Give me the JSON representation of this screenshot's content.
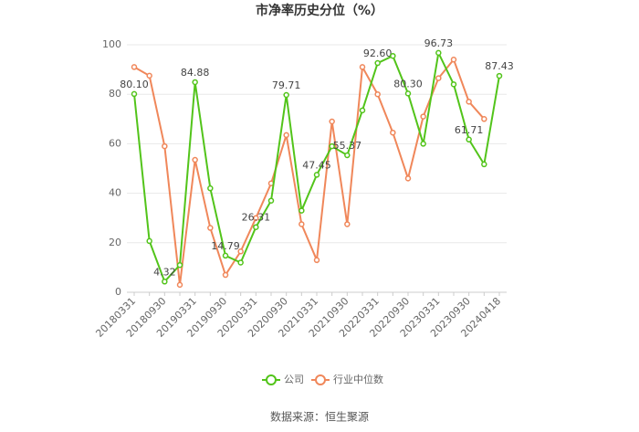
{
  "chart_data": {
    "type": "line",
    "title": "市净率历史分位（%）",
    "categories": [
      "20180331",
      null,
      "20180930",
      null,
      "20190331",
      null,
      "20190930",
      null,
      "20200331",
      null,
      "20200930",
      null,
      "20210331",
      null,
      "20210930",
      null,
      "20220331",
      null,
      "20220930",
      null,
      "20230331",
      null,
      "20230930",
      null,
      "20240418"
    ],
    "series": [
      {
        "name": "公司",
        "color": "#52c41a",
        "values": [
          80.1,
          20.7,
          4.32,
          11,
          84.88,
          42,
          14.79,
          12,
          26.31,
          37,
          79.71,
          33,
          47.45,
          59,
          55.37,
          73.5,
          92.6,
          95.5,
          80.3,
          60,
          96.73,
          84,
          61.71,
          51.7,
          87.43
        ],
        "value_labels": [
          "80.10",
          null,
          "4.32",
          null,
          "84.88",
          null,
          "14.79",
          null,
          "26.31",
          null,
          "79.71",
          null,
          "47.45",
          null,
          "55.37",
          null,
          "92.60",
          null,
          "80.30",
          null,
          "96.73",
          null,
          "61.71",
          null,
          "87.43"
        ]
      },
      {
        "name": "行业中位数",
        "color": "#f0875a",
        "values": [
          91,
          87.5,
          59,
          3,
          53.5,
          26,
          7,
          16.5,
          30,
          44,
          63.5,
          27.5,
          13,
          69,
          27.5,
          91,
          80,
          64.5,
          46,
          71,
          86.5,
          94,
          77,
          70,
          null
        ]
      }
    ],
    "ylim": [
      0,
      100
    ],
    "yticks": [
      0,
      20,
      40,
      60,
      80,
      100
    ],
    "grid": true,
    "source": "数据来源：恒生聚源"
  }
}
